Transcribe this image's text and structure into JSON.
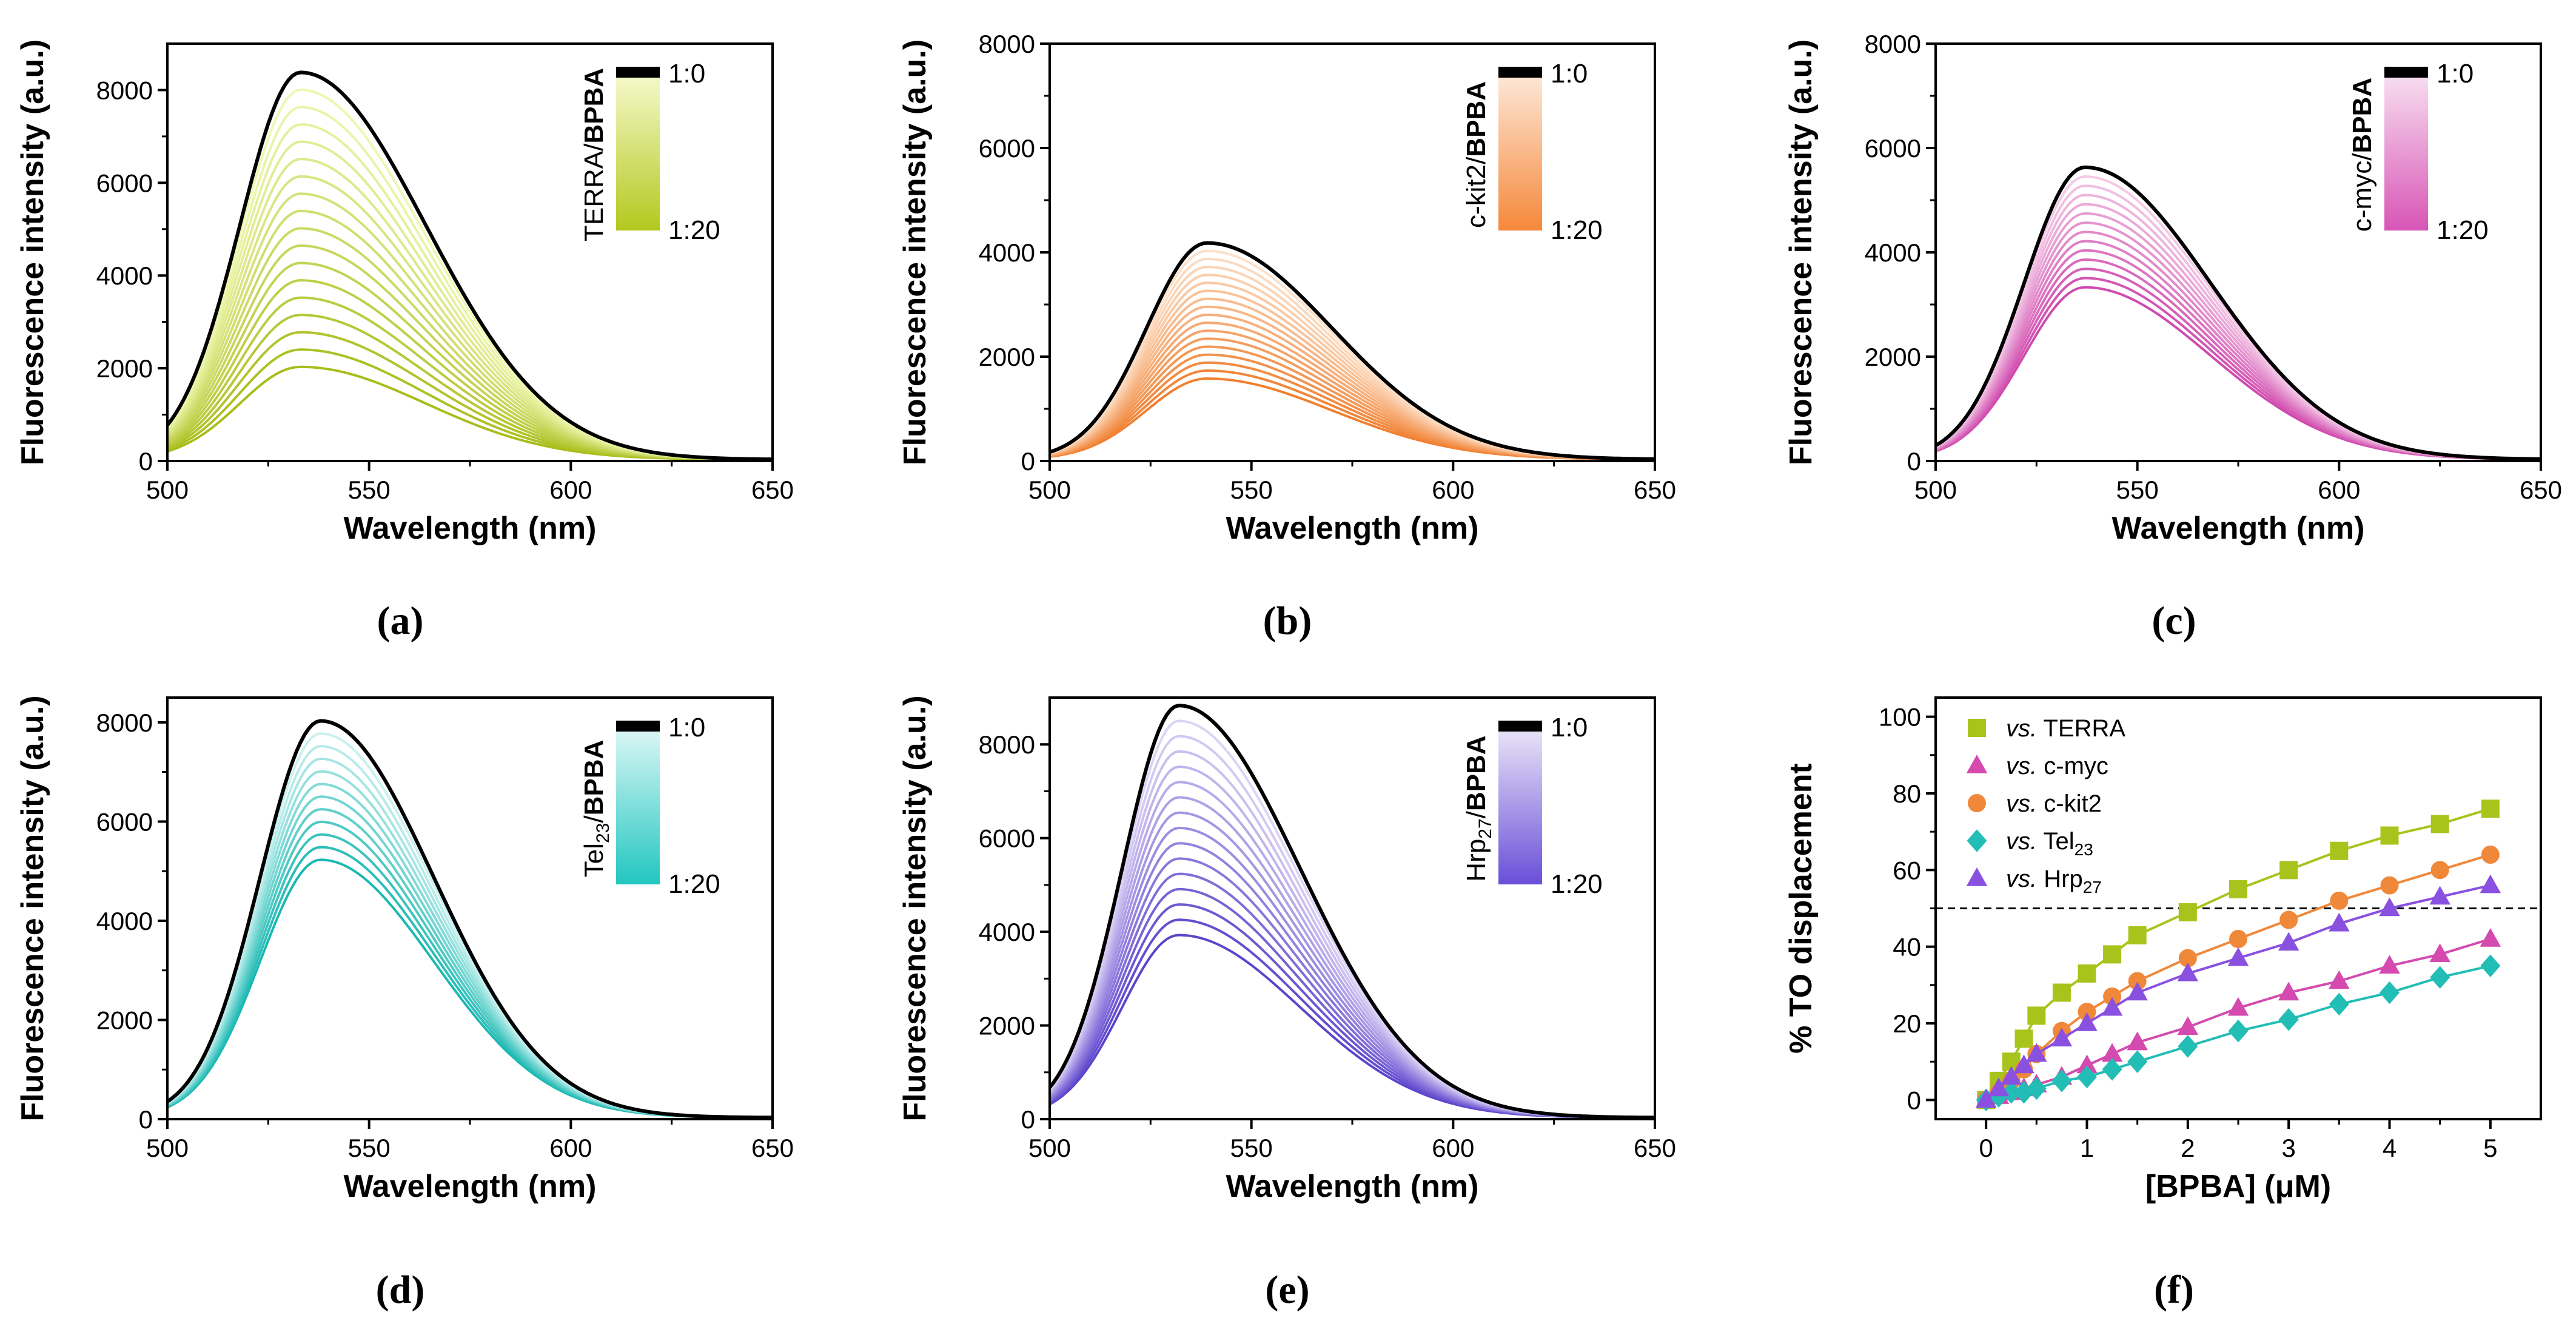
{
  "chart_data": [
    {
      "id": "a",
      "type": "line",
      "panel_label": "(a)",
      "xlabel": "Wavelength (nm)",
      "ylabel": "Fluorescence intensity (a.u.)",
      "xlim": [
        500,
        650
      ],
      "ylim": [
        0,
        9000
      ],
      "xticks": [
        500,
        550,
        600,
        650
      ],
      "yticks": [
        0,
        2000,
        4000,
        6000,
        8000
      ],
      "peak_nm": 533,
      "sigma_left": 15,
      "sigma_right": 31,
      "n_curves": 18,
      "max_peak": 8350,
      "min_peak": 2000,
      "colorbar": {
        "title_prefix": "TERRA/",
        "title_suffix": "BPBA",
        "top": "1:0",
        "bottom": "1:20",
        "color_light": "#f4f8c8",
        "color_dark": "#b3c81e"
      },
      "curve_color_light": "#eef7b0",
      "curve_color_dark": "#a8bd1a"
    },
    {
      "id": "b",
      "type": "line",
      "panel_label": "(b)",
      "xlabel": "Wavelength (nm)",
      "ylabel": "Fluorescence intensity (a.u.)",
      "xlim": [
        500,
        650
      ],
      "ylim": [
        0,
        8000
      ],
      "xticks": [
        500,
        550,
        600,
        650
      ],
      "yticks": [
        0,
        2000,
        4000,
        6000,
        8000
      ],
      "peak_nm": 539,
      "sigma_left": 15,
      "sigma_right": 31,
      "n_curves": 18,
      "max_peak": 4150,
      "min_peak": 1550,
      "colorbar": {
        "title_prefix": "c-kit2/",
        "title_suffix": "BPBA",
        "top": "1:0",
        "bottom": "1:20",
        "color_light": "#fde6d4",
        "color_dark": "#f5883a"
      },
      "curve_color_light": "#fde0c8",
      "curve_color_dark": "#f08030"
    },
    {
      "id": "c",
      "type": "line",
      "panel_label": "(c)",
      "xlabel": "Wavelength (nm)",
      "ylabel": "Fluorescence intensity (a.u.)",
      "xlim": [
        500,
        650
      ],
      "ylim": [
        0,
        8000
      ],
      "xticks": [
        500,
        550,
        600,
        650
      ],
      "yticks": [
        0,
        2000,
        4000,
        6000,
        8000
      ],
      "peak_nm": 537,
      "sigma_left": 15,
      "sigma_right": 31,
      "n_curves": 14,
      "max_peak": 5600,
      "min_peak": 3300,
      "colorbar": {
        "title_prefix": "c-myc/",
        "title_suffix": "BPBA",
        "top": "1:0",
        "bottom": "1:20",
        "color_light": "#f7dcef",
        "color_dark": "#d855b6"
      },
      "curve_color_light": "#f3c9e6",
      "curve_color_dark": "#d04aae"
    },
    {
      "id": "d",
      "type": "line",
      "panel_label": "(d)",
      "xlabel": "Wavelength (nm)",
      "ylabel": "Fluorescence intensity (a.u.)",
      "xlim": [
        500,
        650
      ],
      "ylim": [
        0,
        8500
      ],
      "xticks": [
        500,
        550,
        600,
        650
      ],
      "yticks": [
        0,
        2000,
        4000,
        6000,
        8000
      ],
      "peak_nm": 538,
      "sigma_left": 15,
      "sigma_right": 28,
      "n_curves": 12,
      "max_peak": 8000,
      "min_peak": 5200,
      "colorbar": {
        "title_prefix": "Tel",
        "title_sub": "23",
        "title_mid": "/",
        "title_suffix": "BPBA",
        "top": "1:0",
        "bottom": "1:20",
        "color_light": "#d8f6f5",
        "color_dark": "#22c6c0"
      },
      "curve_color_light": "#c8f1ef",
      "curve_color_dark": "#1ab8b2"
    },
    {
      "id": "e",
      "type": "line",
      "panel_label": "(e)",
      "xlabel": "Wavelength (nm)",
      "ylabel": "Fluorescence intensity (a.u.)",
      "xlim": [
        500,
        650
      ],
      "ylim": [
        0,
        9000
      ],
      "xticks": [
        500,
        550,
        600,
        650
      ],
      "yticks": [
        0,
        2000,
        4000,
        6000,
        8000
      ],
      "peak_nm": 532,
      "sigma_left": 14,
      "sigma_right": 30,
      "n_curves": 16,
      "max_peak": 8800,
      "min_peak": 3900,
      "colorbar": {
        "title_prefix": "Hrp",
        "title_sub": "27",
        "title_mid": "/",
        "title_suffix": "BPBA",
        "top": "1:0",
        "bottom": "1:20",
        "color_light": "#e7e1f7",
        "color_dark": "#6a4fd8"
      },
      "curve_color_light": "#dcd3f5",
      "curve_color_dark": "#5c44cc"
    },
    {
      "id": "f",
      "type": "scatter",
      "panel_label": "(f)",
      "xlabel": "[BPBA] (μM)",
      "ylabel": "% TO displacement",
      "xlim": [
        -0.5,
        5.5
      ],
      "ylim": [
        -5,
        105
      ],
      "xticks": [
        0,
        1,
        2,
        3,
        4,
        5
      ],
      "yticks": [
        0,
        20,
        40,
        60,
        80,
        100
      ],
      "dashed_line_y": 50,
      "x": [
        0,
        0.125,
        0.25,
        0.375,
        0.5,
        0.75,
        1.0,
        1.25,
        1.5,
        2.0,
        2.5,
        3.0,
        3.5,
        4.0,
        4.5,
        5.0
      ],
      "series": [
        {
          "name": "TERRA",
          "prefix": "vs.",
          "marker": "square",
          "color": "#a8c41c",
          "values": [
            0,
            5,
            10,
            16,
            22,
            28,
            33,
            38,
            43,
            49,
            55,
            60,
            65,
            69,
            72,
            76
          ]
        },
        {
          "name": "c-myc",
          "prefix": "vs.",
          "marker": "triangle",
          "color": "#d44aae",
          "values": [
            0,
            1,
            2,
            3,
            4,
            6,
            9,
            12,
            15,
            19,
            24,
            28,
            31,
            35,
            38,
            42
          ]
        },
        {
          "name": "c-kit2",
          "prefix": "vs.",
          "marker": "circle",
          "color": "#f0883a",
          "values": [
            0,
            2,
            5,
            8,
            12,
            18,
            23,
            27,
            31,
            37,
            42,
            47,
            52,
            56,
            60,
            64
          ]
        },
        {
          "name": "Tel",
          "sub": "23",
          "prefix": "vs.",
          "marker": "diamond",
          "color": "#22bdb5",
          "values": [
            0,
            1,
            2,
            2,
            3,
            5,
            6,
            8,
            10,
            14,
            18,
            21,
            25,
            28,
            32,
            35
          ]
        },
        {
          "name": "Hrp",
          "sub": "27",
          "prefix": "vs.",
          "marker": "triangle",
          "color": "#8a50e0",
          "values": [
            0,
            3,
            6,
            9,
            12,
            16,
            20,
            24,
            28,
            33,
            37,
            41,
            46,
            50,
            53,
            56
          ]
        }
      ]
    }
  ]
}
